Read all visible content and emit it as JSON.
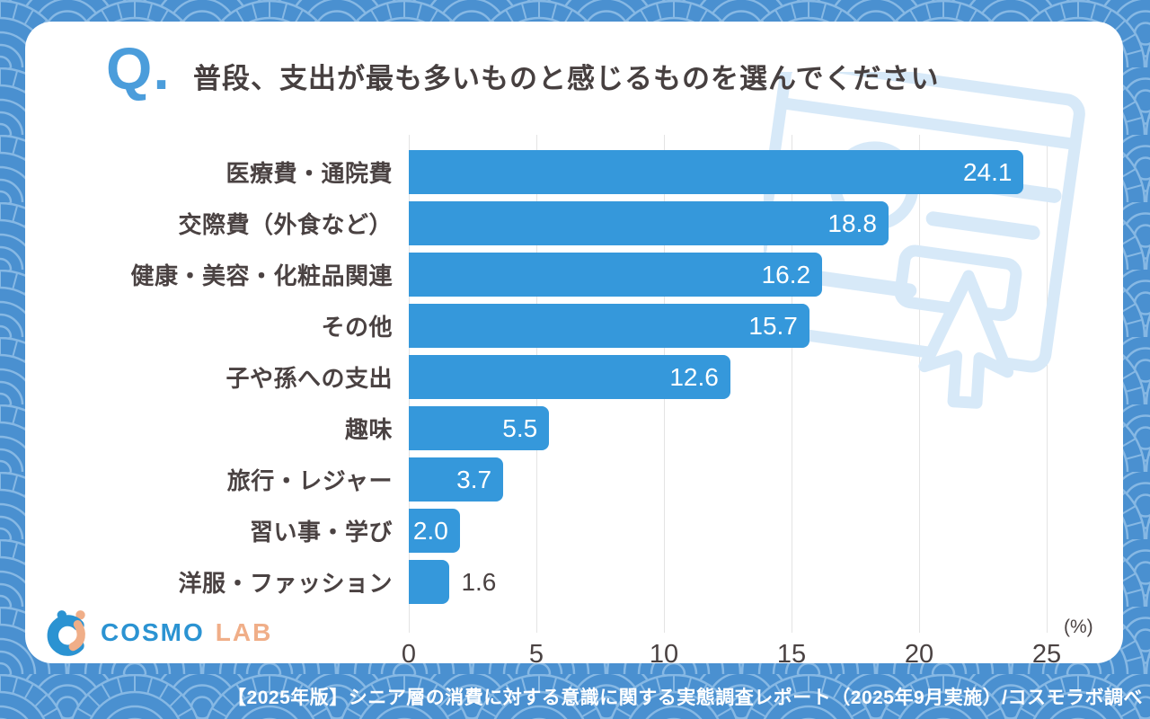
{
  "header": {
    "q_mark": "Q.",
    "title": "普段、支出が最も多いものと感じるものを選んでください"
  },
  "chart_data": {
    "type": "bar",
    "orientation": "horizontal",
    "title": "普段、支出が最も多いものと感じるものを選んでください",
    "categories": [
      "医療費・通院費",
      "交際費（外食など）",
      "健康・美容・化粧品関連",
      "その他",
      "子や孫への支出",
      "趣味",
      "旅行・レジャー",
      "習い事・学び",
      "洋服・ファッション"
    ],
    "values": [
      24.1,
      18.8,
      16.2,
      15.7,
      12.6,
      5.5,
      3.7,
      2.0,
      1.6
    ],
    "value_labels": [
      "24.1",
      "18.8",
      "16.2",
      "15.7",
      "12.6",
      "5.5",
      "3.7",
      "2.0",
      "1.6"
    ],
    "xlabel": "",
    "ylabel": "",
    "x_unit": "(%)",
    "xlim": [
      0,
      25
    ],
    "x_ticks": [
      0,
      5,
      10,
      15,
      20,
      25
    ],
    "grid": true,
    "legend_position": "none",
    "bar_color": "#3598db",
    "value_color_inside": "#ffffff",
    "value_color_outside": "#4a4242"
  },
  "logo": {
    "cosmo": "COSMO",
    "lab": "LAB"
  },
  "footer": {
    "text": "【2025年版】シニア層の消費に対する意識に関する実態調査レポート（2025年9月実施）/コスモラボ調べ"
  },
  "colors": {
    "background_base": "#4a90d0",
    "background_lines": "#86b8e4",
    "card": "#ffffff",
    "bar": "#3598db",
    "text_dark": "#4a4242",
    "q_mark": "#4b9ddb",
    "watermark": "#d7e9f8",
    "logo_blue": "#2b93d2",
    "logo_peach": "#f0ae88"
  }
}
